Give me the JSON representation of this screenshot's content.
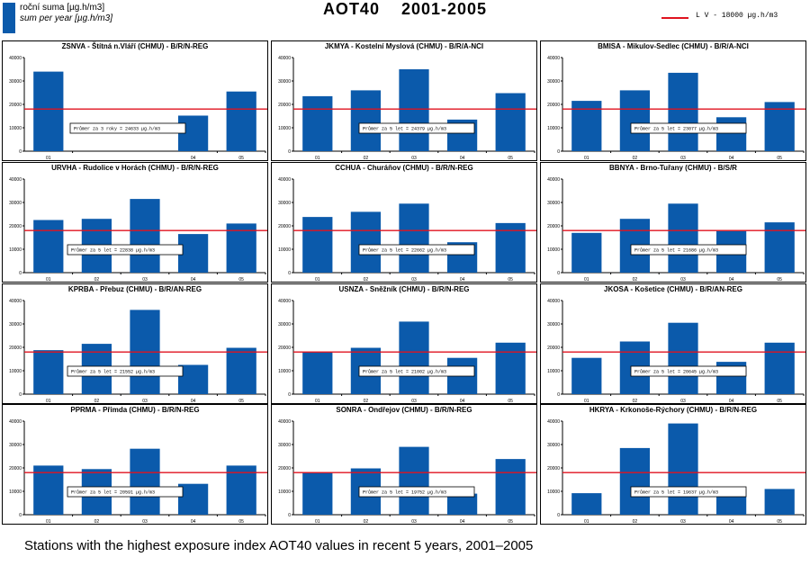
{
  "legend": {
    "line1": "roční suma [µg.h/m3]",
    "line2": "sum per year [µg.h/m3]",
    "lv_label": "L V   - 18000 µg.h/m3",
    "bar_color": "#0b5aab",
    "lv_color": "#e0131f"
  },
  "header": {
    "title": "AOT40      2001-2005"
  },
  "caption": "Stations with the highest exposure index AOT40 values in recent 5 years, 2001–2005",
  "chart_data": [
    {
      "type": "bar",
      "title": "ZSNVA - Štítná n.Vláří (CHMU) - B/R/N-REG",
      "categories": [
        "01",
        "04",
        "05"
      ],
      "values": [
        34000,
        15200,
        25500
      ],
      "annotation": "Průmer za 3 roky = 24633 µg.h/m3",
      "limit": 18000,
      "ylim": [
        0,
        40000
      ],
      "yticks": [
        "0",
        "10000",
        "20000",
        "30000",
        "40000"
      ]
    },
    {
      "type": "bar",
      "title": "JKMYA - Kostelní Myslová (CHMU) - B/R/A-NCI",
      "categories": [
        "01",
        "02",
        "03",
        "04",
        "05"
      ],
      "values": [
        23500,
        26000,
        35000,
        13500,
        24800
      ],
      "annotation": "Průmer za 5 let = 24379 µg.h/m3",
      "limit": 18000,
      "ylim": [
        0,
        40000
      ],
      "yticks": [
        "0",
        "10000",
        "20000",
        "30000",
        "40000"
      ]
    },
    {
      "type": "bar",
      "title": "BMISA - Mikulov-Sedlec (CHMU) - B/R/A-NCI",
      "categories": [
        "01",
        "02",
        "03",
        "04",
        "05"
      ],
      "values": [
        21500,
        26000,
        33500,
        14500,
        21000
      ],
      "annotation": "Průmer za 5 let = 23077 µg.h/m3",
      "limit": 18000,
      "ylim": [
        0,
        40000
      ],
      "yticks": [
        "0",
        "10000",
        "20000",
        "30000",
        "40000"
      ]
    },
    {
      "type": "bar",
      "title": "URVHA - Rudolice v Horách (CHMU) - B/R/N-REG",
      "categories": [
        "01",
        "02",
        "03",
        "04",
        "05"
      ],
      "values": [
        22500,
        23000,
        31500,
        16500,
        21000
      ],
      "annotation": "Průmer za 5 let = 22838 µg.h/m3",
      "limit": 18000,
      "ylim": [
        0,
        40000
      ],
      "yticks": [
        "0",
        "10000",
        "20000",
        "30000",
        "40000"
      ]
    },
    {
      "type": "bar",
      "title": "CCHUA - Churáňov (CHMU) - B/R/N-REG",
      "categories": [
        "01",
        "02",
        "03",
        "04",
        "05"
      ],
      "values": [
        23800,
        26000,
        29500,
        13000,
        21200
      ],
      "annotation": "Průmer za 5 let = 22662 µg.h/m3",
      "limit": 18000,
      "ylim": [
        0,
        40000
      ],
      "yticks": [
        "0",
        "10000",
        "20000",
        "30000",
        "40000"
      ]
    },
    {
      "type": "bar",
      "title": "BBNYA - Brno-Tuřany (CHMU) - B/S/R",
      "categories": [
        "01",
        "02",
        "03",
        "04",
        "05"
      ],
      "values": [
        17000,
        23000,
        29500,
        17800,
        21500
      ],
      "annotation": "Průmer za 5 let = 21686 µg.h/m3",
      "limit": 18000,
      "ylim": [
        0,
        40000
      ],
      "yticks": [
        "0",
        "10000",
        "20000",
        "30000",
        "40000"
      ]
    },
    {
      "type": "bar",
      "title": "KPRBA - Přebuz (CHMU) - B/R/AN-REG",
      "categories": [
        "01",
        "02",
        "03",
        "04",
        "05"
      ],
      "values": [
        18800,
        21500,
        36000,
        12500,
        19800
      ],
      "annotation": "Průmer za 5 let = 21552 µg.h/m3",
      "limit": 18000,
      "ylim": [
        0,
        40000
      ],
      "yticks": [
        "0",
        "10000",
        "20000",
        "30000",
        "40000"
      ]
    },
    {
      "type": "bar",
      "title": "USNZA - Sněžník (CHMU) - B/R/N-REG",
      "categories": [
        "01",
        "02",
        "03",
        "04",
        "05"
      ],
      "values": [
        18000,
        19800,
        31000,
        15500,
        22000
      ],
      "annotation": "Průmer za 5 let = 21002 µg.h/m3",
      "limit": 18000,
      "ylim": [
        0,
        40000
      ],
      "yticks": [
        "0",
        "10000",
        "20000",
        "30000",
        "40000"
      ]
    },
    {
      "type": "bar",
      "title": "JKOSA - Košetice (CHMU) - B/R/AN-REG",
      "categories": [
        "01",
        "02",
        "03",
        "04",
        "05"
      ],
      "values": [
        15500,
        22500,
        30500,
        13800,
        22000
      ],
      "annotation": "Průmer za 5 let = 20645 µg.h/m3",
      "limit": 18000,
      "ylim": [
        0,
        40000
      ],
      "yticks": [
        "0",
        "10000",
        "20000",
        "30000",
        "40000"
      ]
    },
    {
      "type": "bar",
      "title": "PPRMA - Přimda (CHMU) - B/R/N-REG",
      "categories": [
        "01",
        "02",
        "03",
        "04",
        "05"
      ],
      "values": [
        21000,
        19500,
        28200,
        13200,
        21000
      ],
      "annotation": "Průmer za 5 let = 20591 µg.h/m3",
      "limit": 18000,
      "ylim": [
        0,
        40000
      ],
      "yticks": [
        "0",
        "10000",
        "20000",
        "30000",
        "40000"
      ]
    },
    {
      "type": "bar",
      "title": "SONRA - Ondřejov (CHMU) - B/R/N-REG",
      "categories": [
        "01",
        "02",
        "03",
        "04",
        "05"
      ],
      "values": [
        18000,
        19800,
        29000,
        9000,
        23800
      ],
      "annotation": "Průmer za 5 let = 19752 µg.h/m3",
      "limit": 18000,
      "ylim": [
        0,
        40000
      ],
      "yticks": [
        "0",
        "10000",
        "20000",
        "30000",
        "40000"
      ]
    },
    {
      "type": "bar",
      "title": "HKRYA - Krkonoše-Rýchory (CHMU) - B/R/N-REG",
      "categories": [
        "01",
        "02",
        "03",
        "04",
        "05"
      ],
      "values": [
        9200,
        28500,
        39000,
        11000,
        11000
      ],
      "annotation": "Průmer za 5 let = 19637 µg.h/m3",
      "limit": 18000,
      "ylim": [
        0,
        40000
      ],
      "yticks": [
        "0",
        "10000",
        "20000",
        "30000",
        "40000"
      ]
    }
  ]
}
